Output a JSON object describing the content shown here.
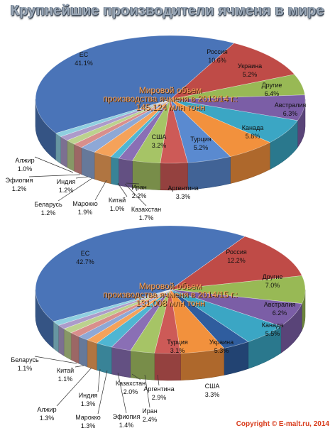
{
  "title": "Крупнейшие производители ячменя в мире",
  "copyright": "Copyright © E-malt.ru, 2014",
  "chart_data": [
    {
      "type": "pie",
      "annotation": [
        "Мировой объем",
        "производства ячменя в 2013/14 г.:",
        "145,124 млн тонн"
      ],
      "slices": [
        {
          "label": "ЕС",
          "value": "41.1%",
          "pct": 41.1,
          "color": "#4a74b8"
        },
        {
          "label": "Россия",
          "value": "10.6%",
          "pct": 10.6,
          "color": "#bf4b47"
        },
        {
          "label": "Украина",
          "value": "5.2%",
          "pct": 5.2,
          "color": "#98b955"
        },
        {
          "label": "Другие",
          "value": "6.4%",
          "pct": 6.4,
          "color": "#7b5ea6"
        },
        {
          "label": "Австралия",
          "value": "6.3%",
          "pct": 6.3,
          "color": "#3ba6c4"
        },
        {
          "label": "Канада",
          "value": "5.8%",
          "pct": 5.8,
          "color": "#f2913d"
        },
        {
          "label": "Турция",
          "value": "5.2%",
          "pct": 5.2,
          "color": "#5a8ad0"
        },
        {
          "label": "США",
          "value": "3.2%",
          "pct": 3.2,
          "color": "#cd5a57"
        },
        {
          "label": "Аргентина",
          "value": "3.3%",
          "pct": 3.3,
          "color": "#a6c466"
        },
        {
          "label": "Казахстан",
          "value": "1.7%",
          "pct": 1.7,
          "color": "#8a6fb5"
        },
        {
          "label": "Китай",
          "value": "1.0%",
          "pct": 1.0,
          "color": "#4fb6d2"
        },
        {
          "label": "Иран",
          "value": "2.2%",
          "pct": 2.2,
          "color": "#f5a25a"
        },
        {
          "label": "Марокко",
          "value": "1.9%",
          "pct": 1.9,
          "color": "#8ea8d6"
        },
        {
          "label": "Беларусь",
          "value": "1.2%",
          "pct": 1.2,
          "color": "#d98f8c"
        },
        {
          "label": "Индия",
          "value": "1.2%",
          "pct": 1.2,
          "color": "#bcd28e"
        },
        {
          "label": "Эфиопия",
          "value": "1.2%",
          "pct": 1.2,
          "color": "#ac9bca"
        },
        {
          "label": "Алжир",
          "value": "1.0%",
          "pct": 1.0,
          "color": "#8fcfe0"
        }
      ]
    },
    {
      "type": "pie",
      "annotation": [
        "Мировой объем",
        "производства ячменя в 2014/15 г.:",
        "131,008 млн тонн"
      ],
      "slices": [
        {
          "label": "ЕС",
          "value": "42.7%",
          "pct": 42.7,
          "color": "#4a74b8"
        },
        {
          "label": "Россия",
          "value": "12.2%",
          "pct": 12.2,
          "color": "#bf4b47"
        },
        {
          "label": "Другие",
          "value": "7.0%",
          "pct": 7.0,
          "color": "#98b955"
        },
        {
          "label": "Австралия",
          "value": "6.2%",
          "pct": 6.2,
          "color": "#7b5ea6"
        },
        {
          "label": "Канада",
          "value": "5.5%",
          "pct": 5.5,
          "color": "#3ba6c4"
        },
        {
          "label": "США",
          "value": "3.3%",
          "pct": 3.3,
          "color": "#2f5d9e"
        },
        {
          "label": "Украина",
          "value": "5.3%",
          "pct": 5.3,
          "color": "#f2913d"
        },
        {
          "label": "Турция",
          "value": "3.1%",
          "pct": 3.1,
          "color": "#cd5a57"
        },
        {
          "label": "Аргентина",
          "value": "2.9%",
          "pct": 2.9,
          "color": "#a6c466"
        },
        {
          "label": "Иран",
          "value": "2.4%",
          "pct": 2.4,
          "color": "#8a6fb5"
        },
        {
          "label": "Казахстан",
          "value": "2.0%",
          "pct": 2.0,
          "color": "#4fb6d2"
        },
        {
          "label": "Эфиопия",
          "value": "1.4%",
          "pct": 1.4,
          "color": "#f5a25a"
        },
        {
          "label": "Марокко",
          "value": "1.3%",
          "pct": 1.3,
          "color": "#8ea8d6"
        },
        {
          "label": "Индия",
          "value": "1.3%",
          "pct": 1.3,
          "color": "#d98f8c"
        },
        {
          "label": "Алжир",
          "value": "1.3%",
          "pct": 1.3,
          "color": "#bcd28e"
        },
        {
          "label": "Китай",
          "value": "1.1%",
          "pct": 1.1,
          "color": "#ac9bca"
        },
        {
          "label": "Беларусь",
          "value": "1.1%",
          "pct": 1.1,
          "color": "#8fcfe0"
        }
      ]
    }
  ]
}
